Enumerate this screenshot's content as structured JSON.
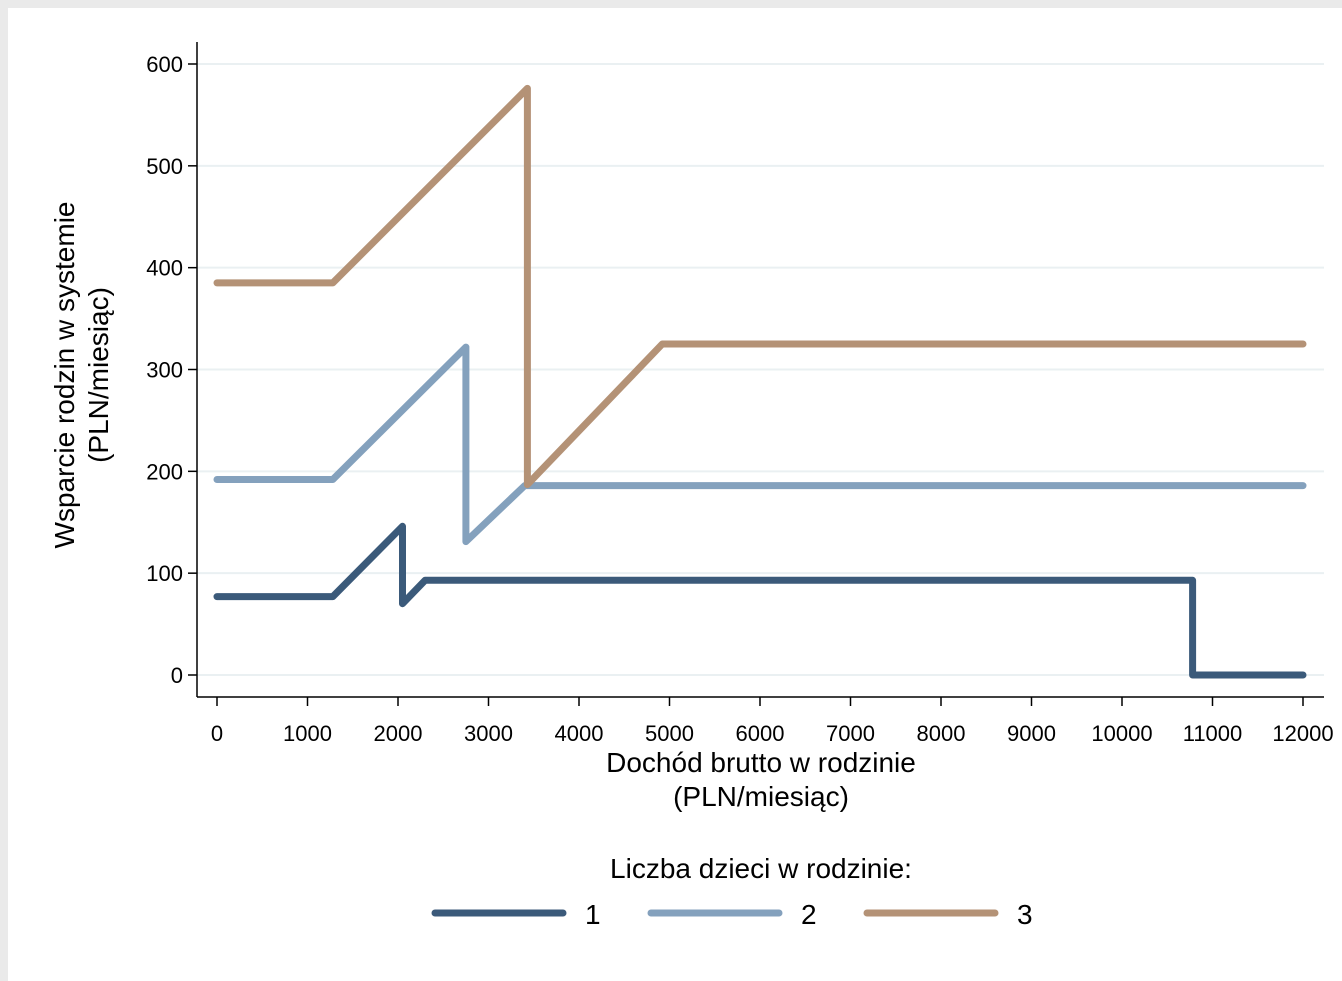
{
  "chart_data": {
    "type": "line",
    "xlabel": [
      "Dochód brutto w rodzinie",
      "(PLN/miesiąc)"
    ],
    "ylabel": [
      "Wsparcie rodzin w systemie",
      "(PLN/miesiąc)"
    ],
    "xlim": [
      0,
      12000
    ],
    "ylim": [
      0,
      600
    ],
    "x_ticks": [
      0,
      1000,
      2000,
      3000,
      4000,
      5000,
      6000,
      7000,
      8000,
      9000,
      10000,
      11000,
      12000
    ],
    "y_ticks": [
      0,
      100,
      200,
      300,
      400,
      500,
      600
    ],
    "grid": "horizontal",
    "legend": {
      "title": "Liczba dzieci w rodzinie:",
      "position": "bottom"
    },
    "series": [
      {
        "name": "1",
        "color": "#3b5a7a",
        "points": [
          [
            0,
            77
          ],
          [
            1280,
            77
          ],
          [
            2050,
            146
          ],
          [
            2050,
            70
          ],
          [
            2300,
            93
          ],
          [
            10780,
            93
          ],
          [
            10780,
            0
          ],
          [
            12000,
            0
          ]
        ]
      },
      {
        "name": "2",
        "color": "#84a1bd",
        "points": [
          [
            0,
            192
          ],
          [
            1280,
            192
          ],
          [
            2750,
            322
          ],
          [
            2750,
            131
          ],
          [
            3400,
            186
          ],
          [
            12000,
            186
          ]
        ]
      },
      {
        "name": "3",
        "color": "#b49276",
        "points": [
          [
            0,
            385
          ],
          [
            1280,
            385
          ],
          [
            3430,
            576
          ],
          [
            3430,
            187
          ],
          [
            4920,
            325
          ],
          [
            12000,
            325
          ]
        ]
      }
    ]
  }
}
